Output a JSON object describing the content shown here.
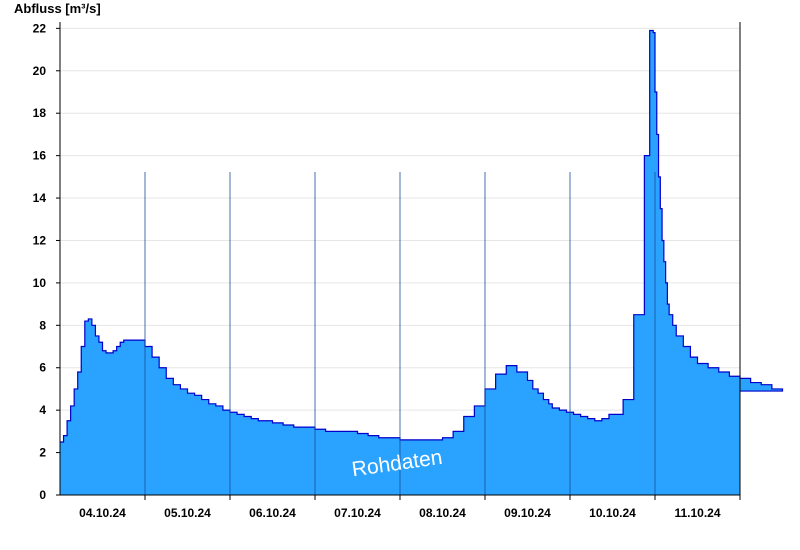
{
  "chart_data": {
    "type": "area",
    "ylabel": "Abfluss [m³/s]",
    "watermark": "Rohdaten",
    "ylim": [
      0,
      22.3
    ],
    "yticks": [
      0,
      2,
      4,
      6,
      8,
      10,
      12,
      14,
      16,
      18,
      20,
      22
    ],
    "x_day_boundaries": [
      "04.10.24 12:00",
      "05.10.24",
      "06.10.24",
      "07.10.24",
      "08.10.24",
      "09.10.24",
      "10.10.24",
      "11.10.24",
      "12.10.24"
    ],
    "xtick_labels": [
      "04.10.24",
      "05.10.24",
      "06.10.24",
      "07.10.24",
      "08.10.24",
      "09.10.24",
      "10.10.24",
      "11.10.24"
    ],
    "grid": true,
    "colors": {
      "fill": "#29a3ff",
      "line": "#0000cc",
      "grid": "#e6e6e6",
      "axis": "#000000"
    },
    "series": [
      {
        "x": [
          "03.10.24 12:00",
          "03.10.24 13:00",
          "03.10.24 14:00",
          "03.10.24 15:00",
          "03.10.24 16:00",
          "03.10.24 17:00",
          "03.10.24 18:00",
          "03.10.24 19:00",
          "03.10.24 20:00",
          "03.10.24 21:00",
          "03.10.24 22:00",
          "03.10.24 23:00",
          "04.10.24 00:00",
          "04.10.24 01:00",
          "04.10.24 02:00",
          "04.10.24 03:00",
          "04.10.24 04:00",
          "04.10.24 05:00",
          "04.10.24 06:00",
          "04.10.24 08:00",
          "04.10.24 10:00",
          "04.10.24 12:00",
          "04.10.24 14:00",
          "04.10.24 16:00",
          "04.10.24 18:00",
          "04.10.24 20:00",
          "04.10.24 22:00",
          "05.10.24 00:00",
          "05.10.24 02:00",
          "05.10.24 04:00",
          "05.10.24 06:00",
          "05.10.24 08:00",
          "05.10.24 10:00",
          "05.10.24 12:00",
          "05.10.24 14:00",
          "05.10.24 16:00",
          "05.10.24 18:00",
          "05.10.24 20:00",
          "05.10.24 22:00",
          "06.10.24 00:00",
          "06.10.24 03:00",
          "06.10.24 06:00",
          "06.10.24 09:00",
          "06.10.24 12:00",
          "06.10.24 15:00",
          "06.10.24 18:00",
          "06.10.24 21:00",
          "07.10.24 00:00",
          "07.10.24 03:00",
          "07.10.24 06:00",
          "07.10.24 09:00",
          "07.10.24 12:00",
          "07.10.24 15:00",
          "07.10.24 18:00",
          "07.10.24 21:00",
          "08.10.24 00:00",
          "08.10.24 03:00",
          "08.10.24 06:00",
          "08.10.24 09:00",
          "08.10.24 12:00",
          "08.10.24 15:00",
          "08.10.24 18:00",
          "08.10.24 21:00",
          "09.10.24 00:00",
          "09.10.24 01:30",
          "09.10.24 03:00",
          "09.10.24 04:30",
          "09.10.24 06:00",
          "09.10.24 07:00",
          "09.10.24 09:00",
          "09.10.24 11:00",
          "09.10.24 13:00",
          "09.10.24 15:00",
          "09.10.24 17:00",
          "09.10.24 19:00",
          "09.10.24 21:00",
          "09.10.24 23:00",
          "10.10.24 03:00",
          "10.10.24 06:00",
          "10.10.24 09:00",
          "10.10.24 10:30",
          "10.10.24 11:30",
          "10.10.24 12:00",
          "10.10.24 12:30",
          "10.10.24 13:00",
          "10.10.24 13:30",
          "10.10.24 14:00",
          "10.10.24 14:30",
          "10.10.24 15:00",
          "10.10.24 15:30",
          "10.10.24 16:00",
          "10.10.24 17:00",
          "10.10.24 18:00",
          "10.10.24 20:00",
          "10.10.24 22:00",
          "11.10.24 00:00",
          "11.10.24 03:00",
          "11.10.24 06:00",
          "11.10.24 09:00",
          "11.10.24 12:00",
          "11.10.24 15:00",
          "11.10.24 18:00",
          "11.10.24 21:00",
          "12.10.24 00:00"
        ],
        "values": [
          2.5,
          2.8,
          3.5,
          4.2,
          5.0,
          5.8,
          7.0,
          8.2,
          8.3,
          8.0,
          7.5,
          7.2,
          6.8,
          6.7,
          6.7,
          6.8,
          7.0,
          7.2,
          7.3,
          7.3,
          7.3,
          7.0,
          6.5,
          6.0,
          5.5,
          5.2,
          5.0,
          4.8,
          4.7,
          4.5,
          4.3,
          4.2,
          4.0,
          3.9,
          3.8,
          3.7,
          3.6,
          3.5,
          3.5,
          3.4,
          3.3,
          3.2,
          3.2,
          3.1,
          3.0,
          3.0,
          3.0,
          2.9,
          2.8,
          2.7,
          2.7,
          2.6,
          2.6,
          2.6,
          2.6,
          2.7,
          3.0,
          3.7,
          4.2,
          5.0,
          5.7,
          6.1,
          5.8,
          5.4,
          5.0,
          4.8,
          4.5,
          4.3,
          4.1,
          4.0,
          3.9,
          3.8,
          3.7,
          3.6,
          3.5,
          3.6,
          3.8,
          4.5,
          8.5,
          16.0,
          21.9,
          21.8,
          19.0,
          17.0,
          15.0,
          13.5,
          12.0,
          11.0,
          10.0,
          9.0,
          8.5,
          8.0,
          7.5,
          7.0,
          6.5,
          6.2,
          6.0,
          5.8,
          5.6,
          5.5,
          5.3,
          5.2,
          5.0,
          4.9
        ]
      }
    ]
  }
}
